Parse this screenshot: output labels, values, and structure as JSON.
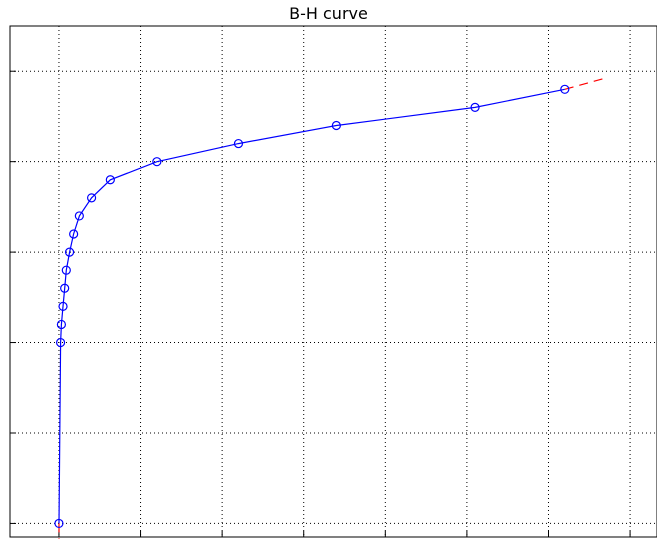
{
  "chart_data": {
    "type": "line",
    "title": "B-H curve",
    "xlabel": "",
    "ylabel": "",
    "grid": true,
    "x_ticks": [
      0,
      1,
      2,
      3,
      4,
      5,
      6,
      7
    ],
    "y_ticks": [
      0,
      1,
      2,
      3,
      4,
      5
    ],
    "xlim": [
      -0.6,
      7.33
    ],
    "ylim": [
      -0.15,
      5.5
    ],
    "series": [
      {
        "style": "marker-line",
        "color": "#0000ff",
        "marker": "circle",
        "x": [
          0.0,
          0.02,
          0.03,
          0.05,
          0.07,
          0.09,
          0.13,
          0.18,
          0.25,
          0.4,
          0.63,
          1.2,
          2.2,
          3.4,
          5.1,
          6.2
        ],
        "y": [
          0.0,
          2.0,
          2.2,
          2.4,
          2.6,
          2.8,
          3.0,
          3.2,
          3.4,
          3.6,
          3.8,
          4.0,
          4.2,
          4.4,
          4.6,
          4.8
        ]
      },
      {
        "style": "dashed-extension",
        "color": "#ff0000",
        "x": [
          6.2,
          6.68
        ],
        "y": [
          4.8,
          4.92
        ]
      },
      {
        "style": "dashed-extension",
        "color": "#ff0000",
        "x": [
          0.0,
          0.0
        ],
        "y": [
          0.0,
          -0.35
        ]
      }
    ]
  }
}
